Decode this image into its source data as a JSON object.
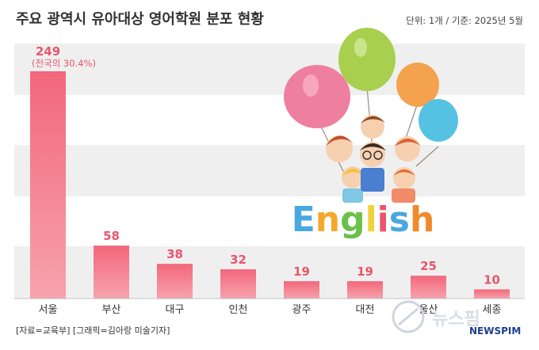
{
  "chart_data": {
    "type": "bar",
    "title": "주요 광역시 유아대상 영어학원 분포 현황",
    "unit_note": "단위: 1개 / 기준: 2025년 5월",
    "categories": [
      "서울",
      "부산",
      "대구",
      "인천",
      "광주",
      "대전",
      "울산",
      "세종"
    ],
    "values": [
      249,
      58,
      38,
      32,
      19,
      19,
      25,
      10
    ],
    "annotations": [
      {
        "category": "서울",
        "text": "(전국의 30.4%)"
      }
    ],
    "ylim": [
      0,
      249
    ],
    "grid": "alternating horizontal bands",
    "colors": {
      "bar": "#f2677b",
      "bar_light": "#f7a3ad",
      "value_label": "#e8566c",
      "band": "#efefef"
    }
  },
  "source": "[자료=교육부] [그래픽=김아랑 미술기자]",
  "illustration": {
    "text": "English",
    "icon": "children-with-balloons-illustration"
  },
  "watermark": {
    "name_kr": "뉴스핌",
    "name_en": "NEWSPIM",
    "icon": "newspim-logo-icon"
  }
}
